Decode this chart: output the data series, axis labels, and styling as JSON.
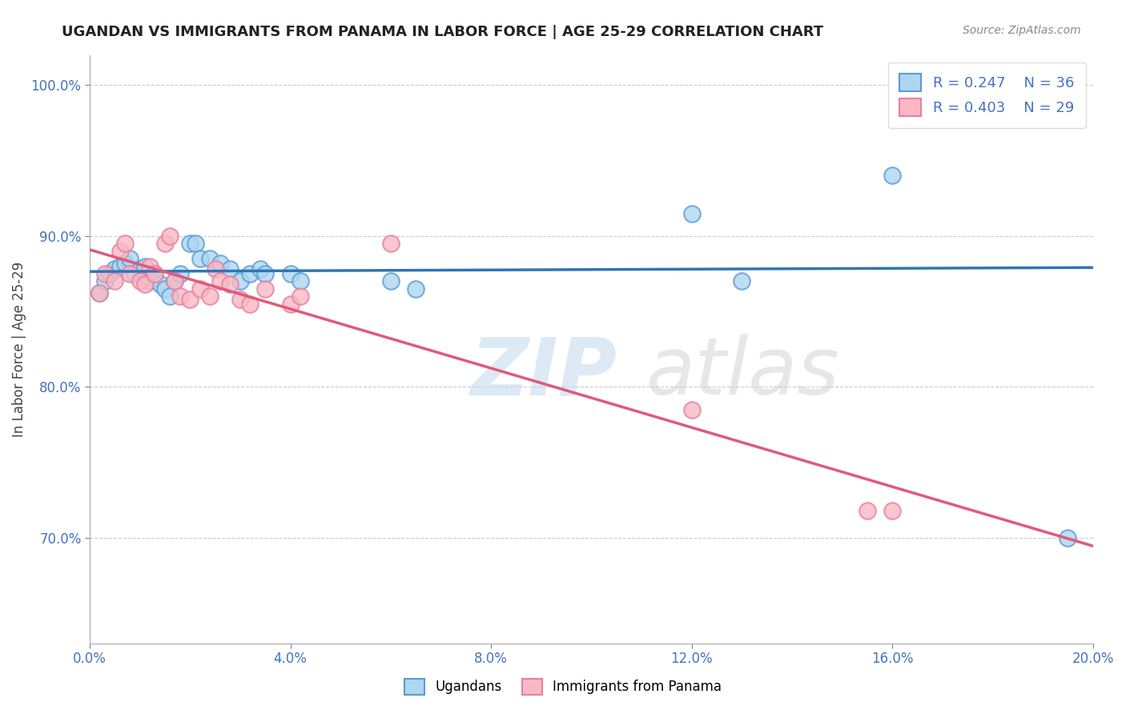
{
  "title": "UGANDAN VS IMMIGRANTS FROM PANAMA IN LABOR FORCE | AGE 25-29 CORRELATION CHART",
  "source": "Source: ZipAtlas.com",
  "ylabel": "In Labor Force | Age 25-29",
  "xlim": [
    0.0,
    0.2
  ],
  "ylim": [
    0.63,
    1.02
  ],
  "xticks": [
    0.0,
    0.04,
    0.08,
    0.12,
    0.16,
    0.2
  ],
  "xticklabels": [
    "0.0%",
    "4.0%",
    "8.0%",
    "12.0%",
    "16.0%",
    "20.0%"
  ],
  "yticks": [
    0.7,
    0.8,
    0.9,
    1.0
  ],
  "yticklabels": [
    "70.0%",
    "80.0%",
    "90.0%",
    "100.0%"
  ],
  "blue_R": 0.247,
  "blue_N": 36,
  "pink_R": 0.403,
  "pink_N": 29,
  "blue_color": "#AED6F1",
  "pink_color": "#F9B8C4",
  "blue_edge": "#5B9BD5",
  "pink_edge": "#E87FA0",
  "blue_line_color": "#2E75B6",
  "pink_line_color": "#E05A7A",
  "legend_label_blue": "Ugandans",
  "legend_label_pink": "Immigrants from Panama",
  "blue_x": [
    0.002,
    0.003,
    0.004,
    0.005,
    0.006,
    0.007,
    0.008,
    0.009,
    0.01,
    0.011,
    0.012,
    0.013,
    0.014,
    0.015,
    0.016,
    0.017,
    0.018,
    0.02,
    0.021,
    0.022,
    0.024,
    0.026,
    0.028,
    0.03,
    0.032,
    0.034,
    0.035,
    0.04,
    0.042,
    0.06,
    0.065,
    0.12,
    0.13,
    0.16,
    0.19,
    0.195
  ],
  "blue_y": [
    0.862,
    0.87,
    0.875,
    0.878,
    0.88,
    0.882,
    0.885,
    0.875,
    0.878,
    0.88,
    0.87,
    0.875,
    0.868,
    0.865,
    0.86,
    0.87,
    0.875,
    0.895,
    0.895,
    0.885,
    0.885,
    0.882,
    0.878,
    0.87,
    0.875,
    0.878,
    0.875,
    0.875,
    0.87,
    0.87,
    0.865,
    0.915,
    0.87,
    0.94,
    1.0,
    0.7
  ],
  "pink_x": [
    0.002,
    0.003,
    0.005,
    0.006,
    0.007,
    0.008,
    0.01,
    0.011,
    0.012,
    0.013,
    0.015,
    0.016,
    0.017,
    0.018,
    0.02,
    0.022,
    0.024,
    0.025,
    0.026,
    0.028,
    0.03,
    0.032,
    0.035,
    0.04,
    0.042,
    0.06,
    0.12,
    0.155,
    0.16
  ],
  "pink_y": [
    0.862,
    0.875,
    0.87,
    0.89,
    0.895,
    0.875,
    0.87,
    0.868,
    0.88,
    0.875,
    0.895,
    0.9,
    0.87,
    0.86,
    0.858,
    0.865,
    0.86,
    0.878,
    0.87,
    0.868,
    0.858,
    0.855,
    0.865,
    0.855,
    0.86,
    0.895,
    0.785,
    0.718,
    0.718
  ]
}
